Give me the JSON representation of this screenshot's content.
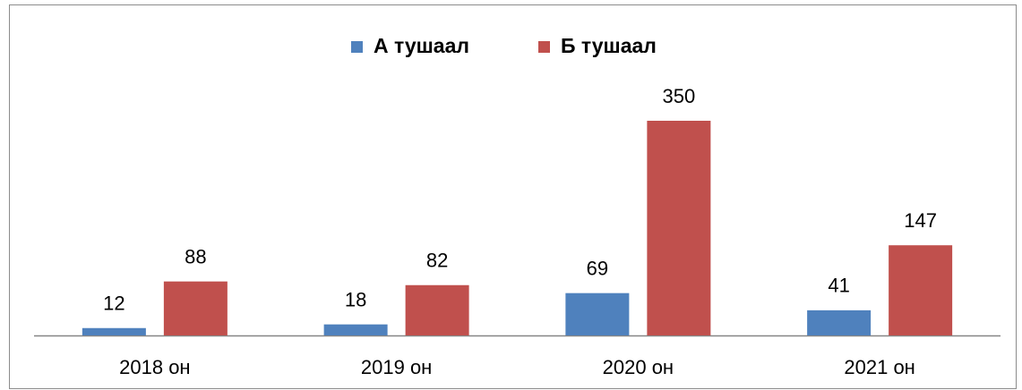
{
  "chart_data": {
    "type": "bar",
    "categories": [
      "2018 он",
      "2019 он",
      "2020 он",
      "2021 он"
    ],
    "series": [
      {
        "name": "А тушаал",
        "color": "#4f81bd",
        "values": [
          12,
          18,
          69,
          41
        ]
      },
      {
        "name": "Б тушаал",
        "color": "#c0504d",
        "values": [
          88,
          82,
          350,
          147
        ]
      }
    ],
    "legend": "top"
  }
}
